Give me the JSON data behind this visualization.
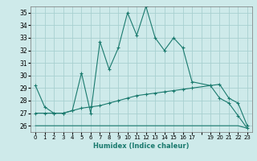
{
  "xlabel": "Humidex (Indice chaleur)",
  "bg_color": "#ceeaea",
  "grid_color": "#a8d0d0",
  "line_color": "#1a7a6e",
  "ylim": [
    25.5,
    35.5
  ],
  "xlim": [
    -0.5,
    23.5
  ],
  "yticks": [
    26,
    27,
    28,
    29,
    30,
    31,
    32,
    33,
    34,
    35
  ],
  "xtick_labels": [
    "0",
    "1",
    "2",
    "3",
    "4",
    "5",
    "6",
    "7",
    "8",
    "9",
    "10",
    "11",
    "12",
    "13",
    "14",
    "15",
    "16",
    "17",
    "19",
    "20",
    "21",
    "22",
    "23"
  ],
  "line1_x": [
    0,
    1,
    2,
    3,
    4,
    5,
    6,
    7,
    8,
    9,
    10,
    11,
    12,
    13,
    14,
    15,
    16,
    17,
    19,
    20,
    21,
    22,
    23
  ],
  "line1_y": [
    29.2,
    27.5,
    27.0,
    27.0,
    27.2,
    30.2,
    27.0,
    32.7,
    30.5,
    32.2,
    35.0,
    33.2,
    35.5,
    33.0,
    32.0,
    33.0,
    32.2,
    29.5,
    29.2,
    28.2,
    27.8,
    26.8,
    25.8
  ],
  "line2_x": [
    0,
    1,
    2,
    3,
    4,
    5,
    6,
    7,
    8,
    9,
    10,
    11,
    12,
    13,
    14,
    15,
    16,
    17,
    19,
    20,
    21,
    22,
    23
  ],
  "line2_y": [
    27.0,
    27.0,
    27.0,
    27.0,
    27.2,
    27.4,
    27.5,
    27.6,
    27.8,
    28.0,
    28.2,
    28.4,
    28.5,
    28.6,
    28.7,
    28.8,
    28.9,
    29.0,
    29.2,
    29.3,
    28.2,
    27.8,
    26.0
  ],
  "line3_x": [
    0,
    1,
    2,
    3,
    4,
    5,
    6,
    7,
    8,
    9,
    10,
    11,
    12,
    13,
    14,
    15,
    16,
    17,
    19,
    20,
    21,
    22,
    23
  ],
  "line3_y": [
    26.0,
    26.0,
    26.0,
    26.0,
    26.0,
    26.0,
    26.0,
    26.0,
    26.0,
    26.0,
    26.0,
    26.0,
    26.0,
    26.0,
    26.0,
    26.0,
    26.0,
    26.0,
    26.0,
    26.0,
    26.0,
    26.0,
    25.8
  ]
}
